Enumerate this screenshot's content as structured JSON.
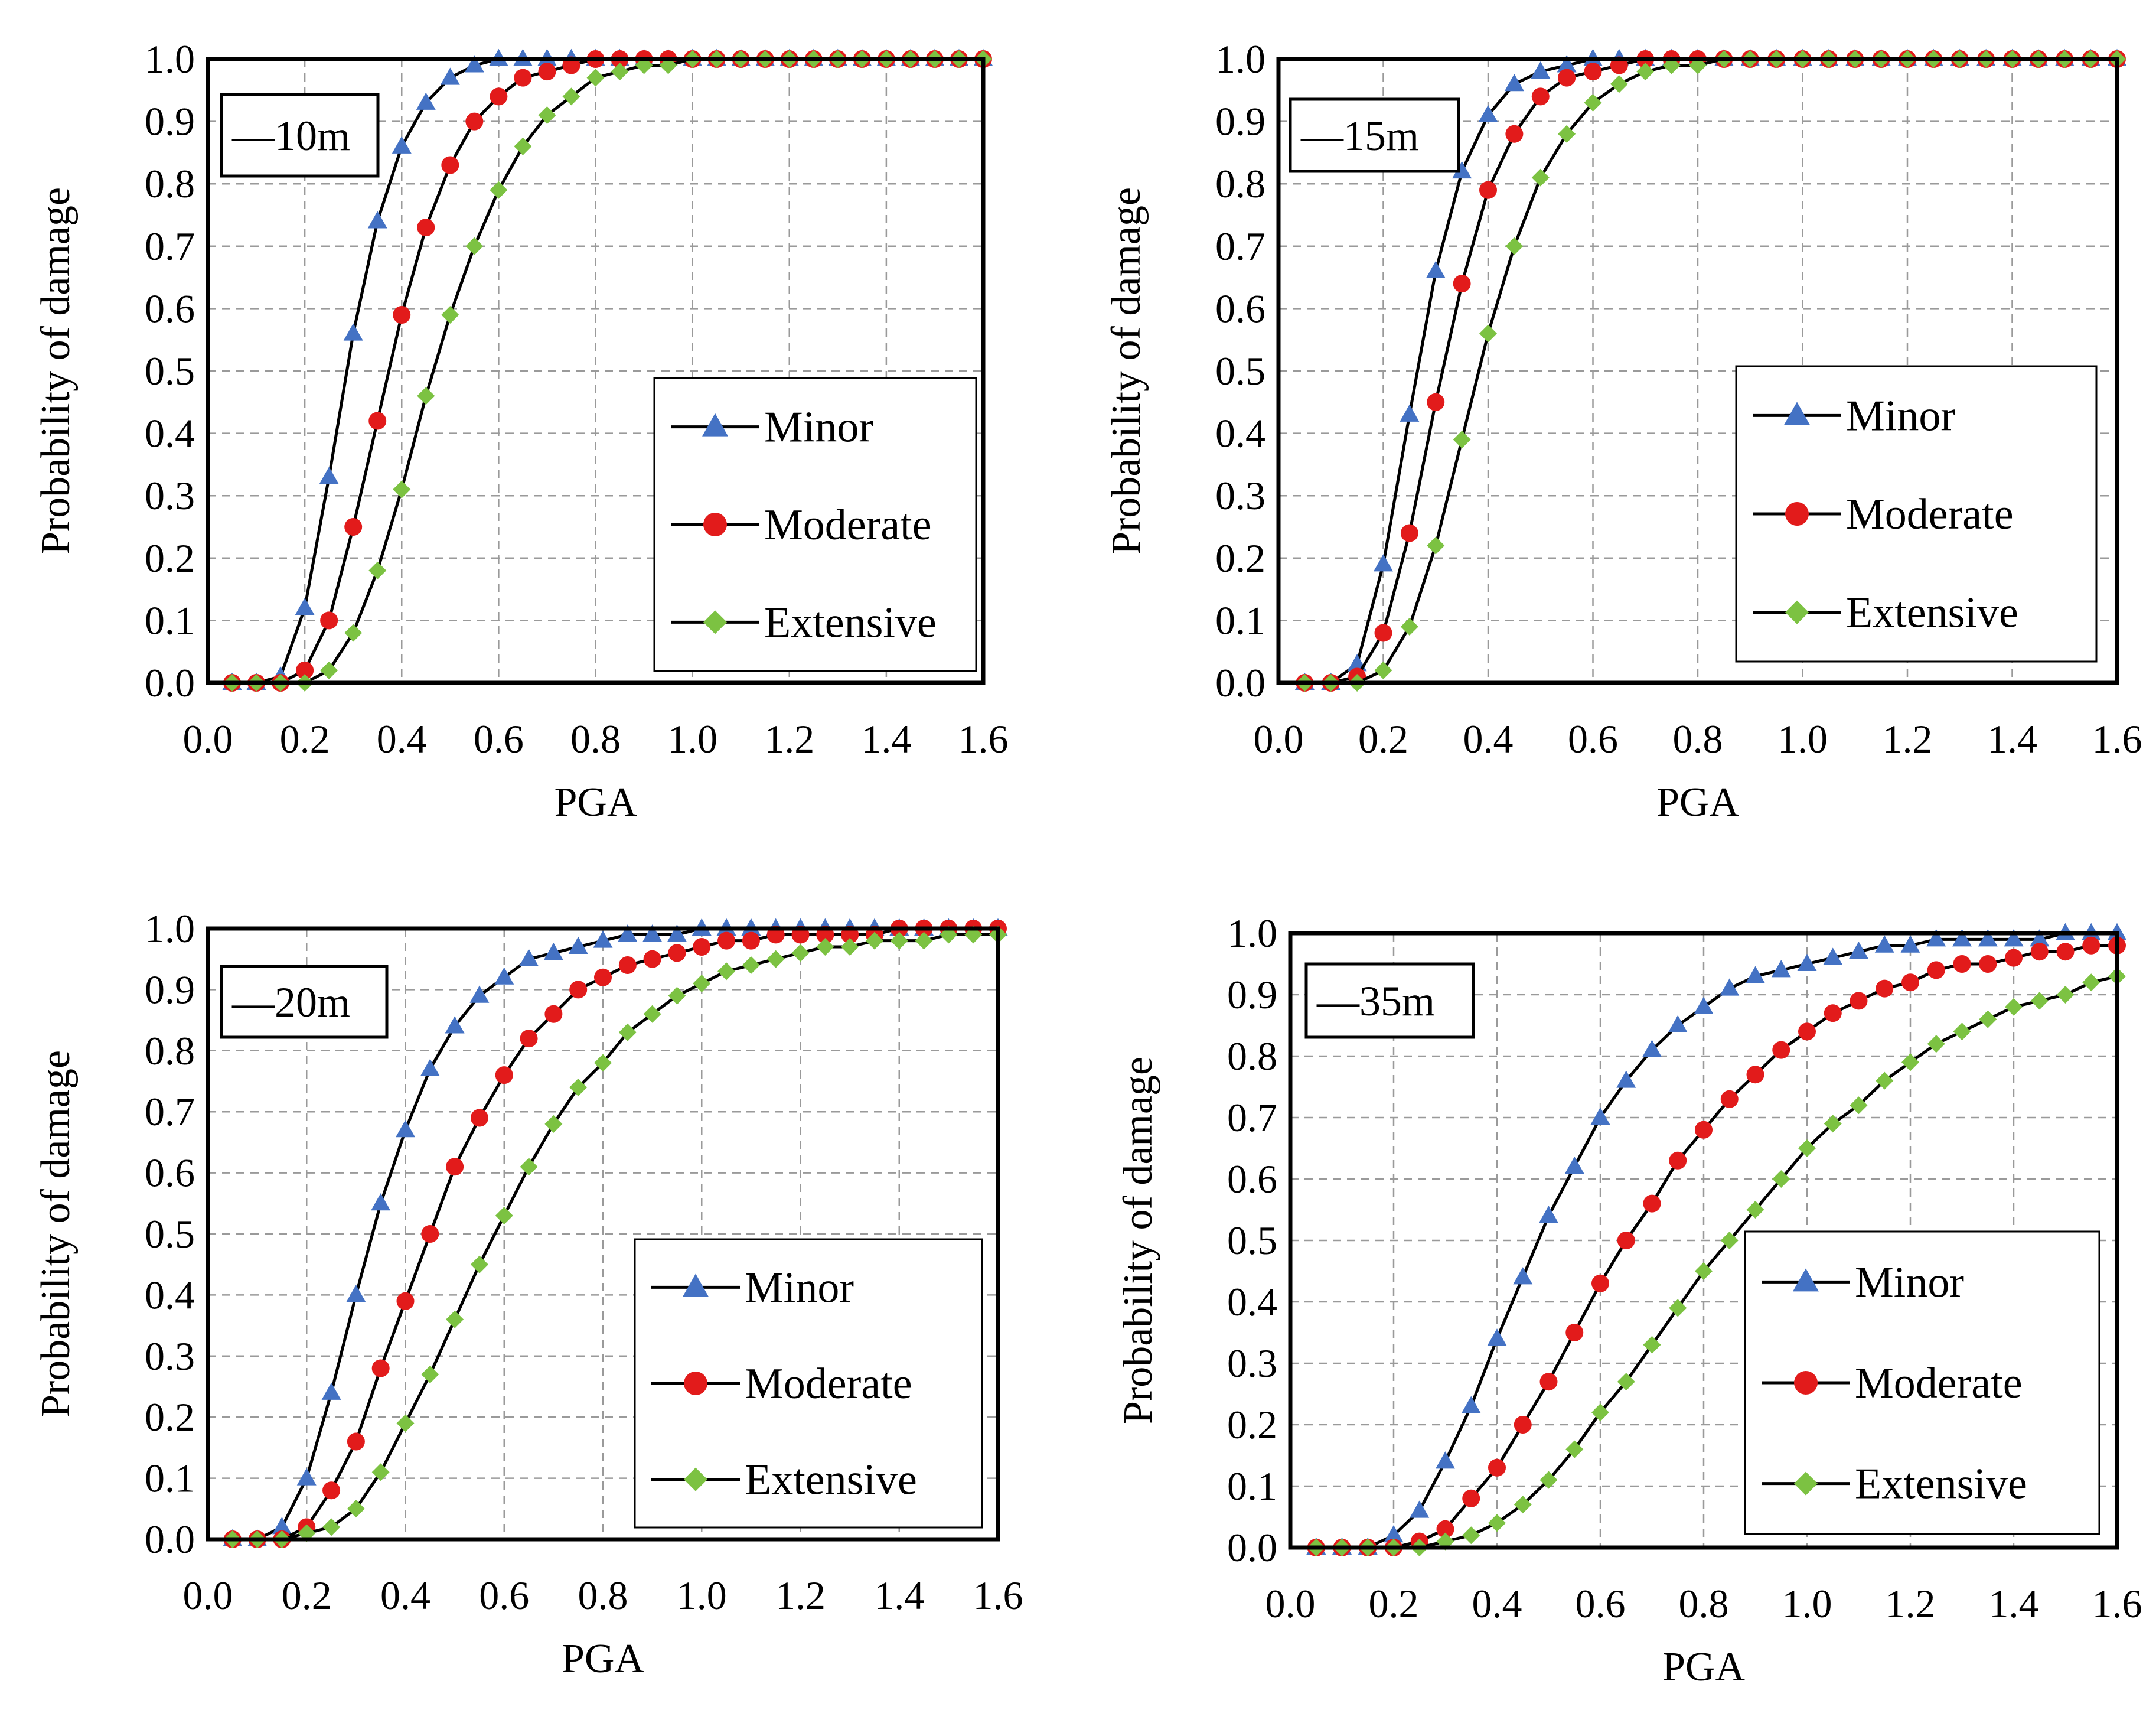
{
  "colors": {
    "minor": "#4472C4",
    "moderate": "#E21B1B",
    "extensive": "#7CC242",
    "line": "#000000",
    "grid": "#9a9a9a"
  },
  "chart_data": [
    {
      "type": "line",
      "inset_label": "—10m",
      "xlabel": "PGA",
      "ylabel": "Probability of damage",
      "xlim": [
        0.0,
        1.6
      ],
      "ylim": [
        0.0,
        1.0
      ],
      "xticks": [
        "0.0",
        "0.2",
        "0.4",
        "0.6",
        "0.8",
        "1.0",
        "1.2",
        "1.4",
        "1.6"
      ],
      "yticks": [
        "0.0",
        "0.1",
        "0.2",
        "0.3",
        "0.4",
        "0.5",
        "0.6",
        "0.7",
        "0.8",
        "0.9",
        "1.0"
      ],
      "grid": true,
      "legend_position": "lower-right",
      "x": [
        0.05,
        0.1,
        0.15,
        0.2,
        0.25,
        0.3,
        0.35,
        0.4,
        0.45,
        0.5,
        0.55,
        0.6,
        0.65,
        0.7,
        0.75,
        0.8,
        0.85,
        0.9,
        0.95,
        1.0,
        1.05,
        1.1,
        1.15,
        1.2,
        1.25,
        1.3,
        1.35,
        1.4,
        1.45,
        1.5,
        1.55,
        1.6
      ],
      "series": [
        {
          "name": "Minor",
          "marker": "triangle",
          "values": [
            0.0,
            0.0,
            0.01,
            0.12,
            0.33,
            0.56,
            0.74,
            0.86,
            0.93,
            0.97,
            0.99,
            1.0,
            1.0,
            1.0,
            1.0,
            1.0,
            1.0,
            1.0,
            1.0,
            1.0,
            1.0,
            1.0,
            1.0,
            1.0,
            1.0,
            1.0,
            1.0,
            1.0,
            1.0,
            1.0,
            1.0,
            1.0
          ]
        },
        {
          "name": "Moderate",
          "marker": "circle",
          "values": [
            0.0,
            0.0,
            0.0,
            0.02,
            0.1,
            0.25,
            0.42,
            0.59,
            0.73,
            0.83,
            0.9,
            0.94,
            0.97,
            0.98,
            0.99,
            1.0,
            1.0,
            1.0,
            1.0,
            1.0,
            1.0,
            1.0,
            1.0,
            1.0,
            1.0,
            1.0,
            1.0,
            1.0,
            1.0,
            1.0,
            1.0,
            1.0
          ]
        },
        {
          "name": "Extensive",
          "marker": "diamond",
          "values": [
            0.0,
            0.0,
            0.0,
            0.0,
            0.02,
            0.08,
            0.18,
            0.31,
            0.46,
            0.59,
            0.7,
            0.79,
            0.86,
            0.91,
            0.94,
            0.97,
            0.98,
            0.99,
            0.99,
            1.0,
            1.0,
            1.0,
            1.0,
            1.0,
            1.0,
            1.0,
            1.0,
            1.0,
            1.0,
            1.0,
            1.0,
            1.0
          ]
        }
      ]
    },
    {
      "type": "line",
      "inset_label": "—15m",
      "xlabel": "PGA",
      "ylabel": "Probability of damage",
      "xlim": [
        0.0,
        1.6
      ],
      "ylim": [
        0.0,
        1.0
      ],
      "xticks": [
        "0.0",
        "0.2",
        "0.4",
        "0.6",
        "0.8",
        "1.0",
        "1.2",
        "1.4",
        "1.6"
      ],
      "yticks": [
        "0.0",
        "0.1",
        "0.2",
        "0.3",
        "0.4",
        "0.5",
        "0.6",
        "0.7",
        "0.8",
        "0.9",
        "1.0"
      ],
      "grid": true,
      "legend_position": "lower-right",
      "x": [
        0.05,
        0.1,
        0.15,
        0.2,
        0.25,
        0.3,
        0.35,
        0.4,
        0.45,
        0.5,
        0.55,
        0.6,
        0.65,
        0.7,
        0.75,
        0.8,
        0.85,
        0.9,
        0.95,
        1.0,
        1.05,
        1.1,
        1.15,
        1.2,
        1.25,
        1.3,
        1.35,
        1.4,
        1.45,
        1.5,
        1.55,
        1.6
      ],
      "series": [
        {
          "name": "Minor",
          "marker": "triangle",
          "values": [
            0.0,
            0.0,
            0.03,
            0.19,
            0.43,
            0.66,
            0.82,
            0.91,
            0.96,
            0.98,
            0.99,
            1.0,
            1.0,
            1.0,
            1.0,
            1.0,
            1.0,
            1.0,
            1.0,
            1.0,
            1.0,
            1.0,
            1.0,
            1.0,
            1.0,
            1.0,
            1.0,
            1.0,
            1.0,
            1.0,
            1.0,
            1.0
          ]
        },
        {
          "name": "Moderate",
          "marker": "circle",
          "values": [
            0.0,
            0.0,
            0.01,
            0.08,
            0.24,
            0.45,
            0.64,
            0.79,
            0.88,
            0.94,
            0.97,
            0.98,
            0.99,
            1.0,
            1.0,
            1.0,
            1.0,
            1.0,
            1.0,
            1.0,
            1.0,
            1.0,
            1.0,
            1.0,
            1.0,
            1.0,
            1.0,
            1.0,
            1.0,
            1.0,
            1.0,
            1.0
          ]
        },
        {
          "name": "Extensive",
          "marker": "diamond",
          "values": [
            0.0,
            0.0,
            0.0,
            0.02,
            0.09,
            0.22,
            0.39,
            0.56,
            0.7,
            0.81,
            0.88,
            0.93,
            0.96,
            0.98,
            0.99,
            0.99,
            1.0,
            1.0,
            1.0,
            1.0,
            1.0,
            1.0,
            1.0,
            1.0,
            1.0,
            1.0,
            1.0,
            1.0,
            1.0,
            1.0,
            1.0,
            1.0
          ]
        }
      ]
    },
    {
      "type": "line",
      "inset_label": "—20m",
      "xlabel": "PGA",
      "ylabel": "Probability of damage",
      "xlim": [
        0.0,
        1.6
      ],
      "ylim": [
        0.0,
        1.0
      ],
      "xticks": [
        "0.0",
        "0.2",
        "0.4",
        "0.6",
        "0.8",
        "1.0",
        "1.2",
        "1.4",
        "1.6"
      ],
      "yticks": [
        "0.0",
        "0.1",
        "0.2",
        "0.3",
        "0.4",
        "0.5",
        "0.6",
        "0.7",
        "0.8",
        "0.9",
        "1.0"
      ],
      "grid": true,
      "legend_position": "lower-right",
      "x": [
        0.05,
        0.1,
        0.15,
        0.2,
        0.25,
        0.3,
        0.35,
        0.4,
        0.45,
        0.5,
        0.55,
        0.6,
        0.65,
        0.7,
        0.75,
        0.8,
        0.85,
        0.9,
        0.95,
        1.0,
        1.05,
        1.1,
        1.15,
        1.2,
        1.25,
        1.3,
        1.35,
        1.4,
        1.45,
        1.5,
        1.55,
        1.6
      ],
      "series": [
        {
          "name": "Minor",
          "marker": "triangle",
          "values": [
            0.0,
            0.0,
            0.02,
            0.1,
            0.24,
            0.4,
            0.55,
            0.67,
            0.77,
            0.84,
            0.89,
            0.92,
            0.95,
            0.96,
            0.97,
            0.98,
            0.99,
            0.99,
            0.99,
            1.0,
            1.0,
            1.0,
            1.0,
            1.0,
            1.0,
            1.0,
            1.0,
            1.0,
            1.0,
            1.0,
            1.0,
            1.0
          ]
        },
        {
          "name": "Moderate",
          "marker": "circle",
          "values": [
            0.0,
            0.0,
            0.0,
            0.02,
            0.08,
            0.16,
            0.28,
            0.39,
            0.5,
            0.61,
            0.69,
            0.76,
            0.82,
            0.86,
            0.9,
            0.92,
            0.94,
            0.95,
            0.96,
            0.97,
            0.98,
            0.98,
            0.99,
            0.99,
            0.99,
            0.99,
            0.99,
            1.0,
            1.0,
            1.0,
            1.0,
            1.0
          ]
        },
        {
          "name": "Extensive",
          "marker": "diamond",
          "values": [
            0.0,
            0.0,
            0.0,
            0.01,
            0.02,
            0.05,
            0.11,
            0.19,
            0.27,
            0.36,
            0.45,
            0.53,
            0.61,
            0.68,
            0.74,
            0.78,
            0.83,
            0.86,
            0.89,
            0.91,
            0.93,
            0.94,
            0.95,
            0.96,
            0.97,
            0.97,
            0.98,
            0.98,
            0.98,
            0.99,
            0.99,
            0.99
          ]
        }
      ]
    },
    {
      "type": "line",
      "inset_label": "—35m",
      "xlabel": "PGA",
      "ylabel": "Probability of damage",
      "xlim": [
        0.0,
        1.6
      ],
      "ylim": [
        0.0,
        1.0
      ],
      "xticks": [
        "0.0",
        "0.2",
        "0.4",
        "0.6",
        "0.8",
        "1.0",
        "1.2",
        "1.4",
        "1.6"
      ],
      "yticks": [
        "0.0",
        "0.1",
        "0.2",
        "0.3",
        "0.4",
        "0.5",
        "0.6",
        "0.7",
        "0.8",
        "0.9",
        "1.0"
      ],
      "grid": true,
      "legend_position": "lower-right",
      "x": [
        0.05,
        0.1,
        0.15,
        0.2,
        0.25,
        0.3,
        0.35,
        0.4,
        0.45,
        0.5,
        0.55,
        0.6,
        0.65,
        0.7,
        0.75,
        0.8,
        0.85,
        0.9,
        0.95,
        1.0,
        1.05,
        1.1,
        1.15,
        1.2,
        1.25,
        1.3,
        1.35,
        1.4,
        1.45,
        1.5,
        1.55,
        1.6
      ],
      "series": [
        {
          "name": "Minor",
          "marker": "triangle",
          "values": [
            0.0,
            0.0,
            0.0,
            0.02,
            0.06,
            0.14,
            0.23,
            0.34,
            0.44,
            0.54,
            0.62,
            0.7,
            0.76,
            0.81,
            0.85,
            0.88,
            0.91,
            0.93,
            0.94,
            0.95,
            0.96,
            0.97,
            0.98,
            0.98,
            0.99,
            0.99,
            0.99,
            0.99,
            0.99,
            1.0,
            1.0,
            1.0
          ]
        },
        {
          "name": "Moderate",
          "marker": "circle",
          "values": [
            0.0,
            0.0,
            0.0,
            0.0,
            0.01,
            0.03,
            0.08,
            0.13,
            0.2,
            0.27,
            0.35,
            0.43,
            0.5,
            0.56,
            0.63,
            0.68,
            0.73,
            0.77,
            0.81,
            0.84,
            0.87,
            0.89,
            0.91,
            0.92,
            0.94,
            0.95,
            0.95,
            0.96,
            0.97,
            0.97,
            0.98,
            0.98
          ]
        },
        {
          "name": "Extensive",
          "marker": "diamond",
          "values": [
            0.0,
            0.0,
            0.0,
            0.0,
            0.0,
            0.01,
            0.02,
            0.04,
            0.07,
            0.11,
            0.16,
            0.22,
            0.27,
            0.33,
            0.39,
            0.45,
            0.5,
            0.55,
            0.6,
            0.65,
            0.69,
            0.72,
            0.76,
            0.79,
            0.82,
            0.84,
            0.86,
            0.88,
            0.89,
            0.9,
            0.92,
            0.93
          ]
        }
      ]
    }
  ]
}
